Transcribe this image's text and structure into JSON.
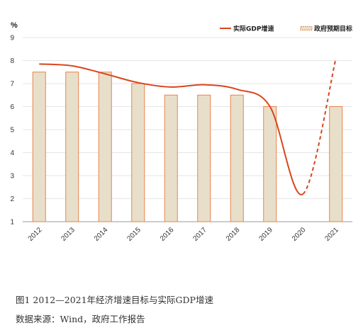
{
  "chart_data": {
    "type": "bar",
    "categories": [
      "2012",
      "2013",
      "2014",
      "2015",
      "2016",
      "2017",
      "2018",
      "2019",
      "2020",
      "2021"
    ],
    "series": [
      {
        "name": "政府预期目标",
        "type": "bar",
        "values": [
          7.5,
          7.5,
          7.5,
          7.0,
          6.5,
          6.5,
          6.5,
          6.0,
          null,
          6.0
        ],
        "fill_color": "#e8dfca",
        "stroke_color": "#e8834a"
      },
      {
        "name": "实际GDP增速",
        "type": "line",
        "smooth": true,
        "values": [
          7.85,
          7.77,
          7.42,
          7.04,
          6.85,
          6.95,
          6.75,
          6.0,
          2.2,
          8.1
        ],
        "dashed_from_index": 8,
        "color": "#d9451c"
      }
    ],
    "ylabel": "%",
    "ylim": [
      1,
      9
    ],
    "yticks": [
      1,
      2,
      3,
      4,
      5,
      6,
      7,
      8,
      9
    ],
    "grid": true,
    "legend": "top-right"
  },
  "caption": {
    "title": "图1 2012—2021年经济增速目标与实际GDP增速",
    "source": "数据来源：Wind，政府工作报告"
  }
}
